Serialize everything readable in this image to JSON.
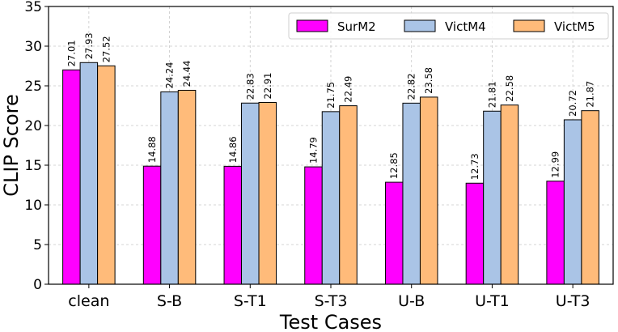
{
  "chart_data": {
    "type": "bar",
    "categories": [
      "clean",
      "S-B",
      "S-T1",
      "S-T3",
      "U-B",
      "U-T1",
      "U-T3"
    ],
    "series": [
      {
        "name": "SurM2",
        "color": "#ff00ff",
        "values": [
          27.01,
          14.88,
          14.86,
          14.79,
          12.85,
          12.73,
          12.99
        ]
      },
      {
        "name": "VictM4",
        "color": "#aac4e6",
        "values": [
          27.93,
          24.24,
          22.83,
          21.75,
          22.82,
          21.81,
          20.72
        ]
      },
      {
        "name": "VictM5",
        "color": "#ffbb7a",
        "values": [
          27.52,
          24.44,
          22.91,
          22.49,
          23.58,
          22.58,
          21.87
        ]
      }
    ],
    "xlabel": "Test Cases",
    "ylabel": "CLIP Score",
    "ylim": [
      0,
      35
    ],
    "yticks": [
      0,
      5,
      10,
      15,
      20,
      25,
      30,
      35
    ],
    "grid": true,
    "legend_position": "top-right",
    "data_labels": true
  }
}
